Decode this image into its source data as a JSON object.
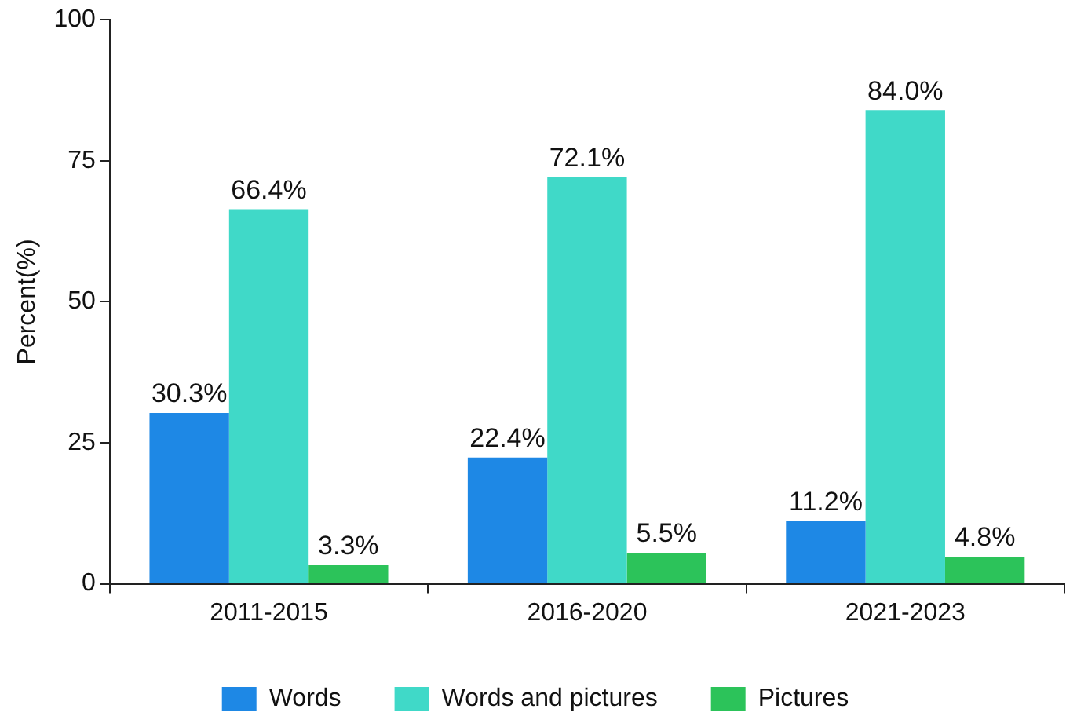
{
  "chart_data": {
    "type": "bar",
    "ylabel": "Percent(%)",
    "categories": [
      "2011-2015",
      "2016-2020",
      "2021-2023"
    ],
    "series": [
      {
        "name": "Words",
        "color": "#1e88e5",
        "values": [
          30.3,
          22.4,
          11.2
        ],
        "value_labels": [
          "30.3%",
          "22.4%",
          "11.2%"
        ]
      },
      {
        "name": "Words and pictures",
        "color": "#40d9c8",
        "values": [
          66.4,
          72.1,
          84.0
        ],
        "value_labels": [
          "66.4%",
          "72.1%",
          "84.0%"
        ]
      },
      {
        "name": "Pictures",
        "color": "#2cc35a",
        "values": [
          3.3,
          5.5,
          4.8
        ],
        "value_labels": [
          "3.3%",
          "5.5%",
          "4.8%"
        ]
      }
    ],
    "ylim": [
      0,
      100
    ],
    "yticks": [
      0,
      25,
      50,
      75,
      100
    ],
    "grid": false,
    "legend": "bottom"
  }
}
